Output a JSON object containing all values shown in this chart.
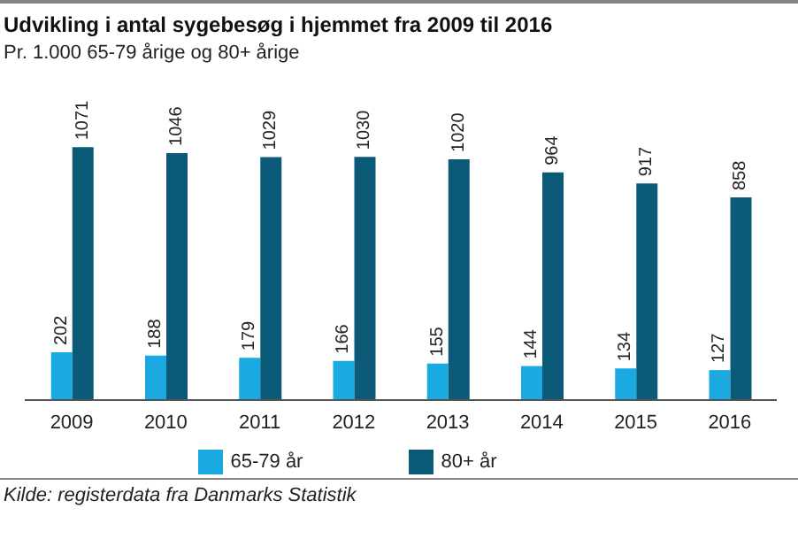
{
  "chart_data": {
    "type": "bar",
    "title": "Udvikling i antal sygebesøg i hjemmet fra 2009 til 2016",
    "subtitle": "Pr. 1.000 65-79 årige og 80+ årige",
    "categories": [
      "2009",
      "2010",
      "2011",
      "2012",
      "2013",
      "2014",
      "2015",
      "2016"
    ],
    "series": [
      {
        "name": "65-79 år",
        "color": "#1ba9e1",
        "values": [
          202,
          188,
          179,
          166,
          155,
          144,
          134,
          127
        ]
      },
      {
        "name": "80+ år",
        "color": "#0b5a78",
        "values": [
          1071,
          1046,
          1029,
          1030,
          1020,
          964,
          917,
          858
        ]
      }
    ],
    "data_labels": true,
    "legend": "bottom",
    "annotations": [
      "Kilde: registerdata fra Danmarks Statistik"
    ]
  }
}
